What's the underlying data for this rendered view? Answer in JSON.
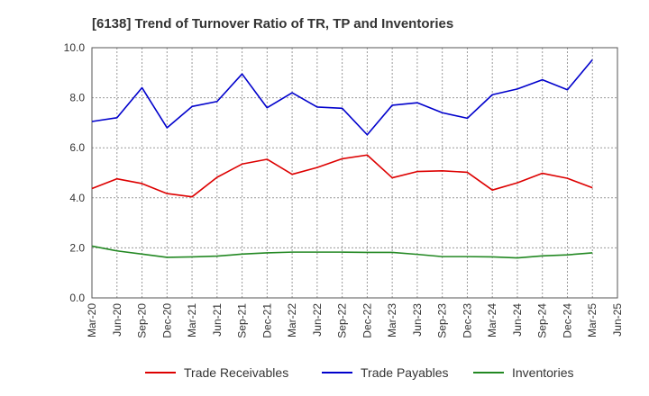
{
  "chart_data": {
    "type": "line",
    "title": "[6138]  Trend of Turnover Ratio of TR, TP and Inventories",
    "xlabel": "",
    "ylabel": "",
    "ylim": [
      0,
      10
    ],
    "yticks": [
      "0.0",
      "2.0",
      "4.0",
      "6.0",
      "8.0",
      "10.0"
    ],
    "xticks": [
      "Mar-20",
      "Jun-20",
      "Sep-20",
      "Dec-20",
      "Mar-21",
      "Jun-21",
      "Sep-21",
      "Dec-21",
      "Mar-22",
      "Jun-22",
      "Sep-22",
      "Dec-22",
      "Mar-23",
      "Jun-23",
      "Sep-23",
      "Dec-23",
      "Mar-24",
      "Jun-24",
      "Sep-24",
      "Dec-24",
      "Mar-25",
      "Jun-25"
    ],
    "x": [
      "Mar-20",
      "Jun-20",
      "Sep-20",
      "Dec-20",
      "Mar-21",
      "Jun-21",
      "Sep-21",
      "Dec-21",
      "Mar-22",
      "Jun-22",
      "Sep-22",
      "Dec-22",
      "Mar-23",
      "Jun-23",
      "Sep-23",
      "Dec-23",
      "Mar-24",
      "Jun-24",
      "Sep-24",
      "Dec-24",
      "Mar-25"
    ],
    "grid": true,
    "legend": "bottom",
    "series": [
      {
        "name": "Trade Receivables",
        "color": "#dd0000",
        "values": [
          4.37,
          4.76,
          4.57,
          4.17,
          4.04,
          4.82,
          5.35,
          5.54,
          4.94,
          5.21,
          5.56,
          5.71,
          4.8,
          5.05,
          5.08,
          5.02,
          4.31,
          4.6,
          4.98,
          4.78,
          4.4
        ]
      },
      {
        "name": "Trade Payables",
        "color": "#0000cc",
        "values": [
          7.05,
          7.2,
          8.4,
          6.8,
          7.65,
          7.85,
          8.95,
          7.6,
          8.2,
          7.63,
          7.58,
          6.52,
          7.7,
          7.8,
          7.4,
          7.18,
          8.12,
          8.35,
          8.72,
          8.32,
          9.52
        ]
      },
      {
        "name": "Inventories",
        "color": "#228822",
        "values": [
          2.07,
          1.88,
          1.75,
          1.62,
          1.64,
          1.67,
          1.75,
          1.8,
          1.83,
          1.83,
          1.83,
          1.82,
          1.82,
          1.74,
          1.65,
          1.65,
          1.64,
          1.6,
          1.68,
          1.72,
          1.8
        ]
      }
    ]
  }
}
